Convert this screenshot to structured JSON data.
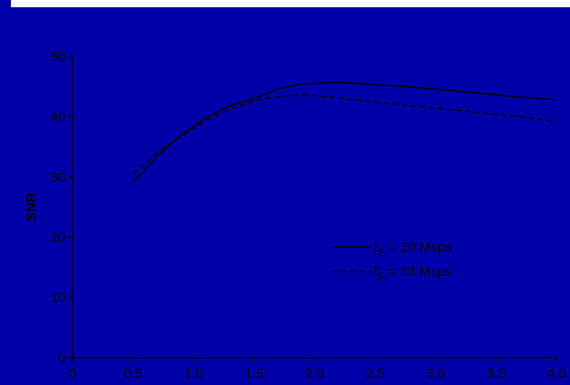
{
  "colors": {
    "background": "#0000a8",
    "band": "#ffffff",
    "axis": "#000000",
    "series": "#000000"
  },
  "chart_data": {
    "type": "line",
    "title": "",
    "xlabel": "",
    "ylabel": "SNR",
    "xlim": [
      0,
      4.0
    ],
    "ylim": [
      0,
      50
    ],
    "x_ticks": [
      "0",
      "0.5",
      "1.0",
      "1.5",
      "2.0",
      "2.5",
      "3.0",
      "3.5",
      "4.0"
    ],
    "x_tick_values": [
      0,
      0.5,
      1.0,
      1.5,
      2.0,
      2.5,
      3.0,
      3.5,
      4.0
    ],
    "y_ticks": [
      "0",
      "10",
      "20",
      "30",
      "40",
      "50"
    ],
    "y_tick_values": [
      0,
      10,
      20,
      30,
      40,
      50
    ],
    "grid": false,
    "legend_position": "center-right",
    "series": [
      {
        "name": "= 20 Msps",
        "label_main": "f",
        "label_sub": "S",
        "label_rest": " = 20 Msps",
        "style": "solid",
        "x": [
          0.5,
          0.7,
          0.9,
          1.1,
          1.3,
          1.5,
          1.7,
          1.9,
          2.2,
          2.5,
          2.8,
          3.2,
          3.6,
          4.0
        ],
        "y": [
          29.0,
          33.5,
          37.0,
          39.8,
          41.8,
          43.0,
          44.6,
          45.4,
          45.7,
          45.3,
          44.9,
          44.2,
          43.4,
          42.8
        ]
      },
      {
        "name": "= 33 Msps",
        "label_main": "f",
        "label_sub": "S",
        "label_rest": " = 33 Msps",
        "style": "dashed",
        "x": [
          0.5,
          0.7,
          0.9,
          1.1,
          1.3,
          1.5,
          1.7,
          1.9,
          2.2,
          2.5,
          2.8,
          3.2,
          3.6,
          4.0
        ],
        "y": [
          30.5,
          34.0,
          36.8,
          39.3,
          41.2,
          42.6,
          43.3,
          43.6,
          43.1,
          42.4,
          41.8,
          41.0,
          40.2,
          39.2
        ]
      }
    ]
  }
}
